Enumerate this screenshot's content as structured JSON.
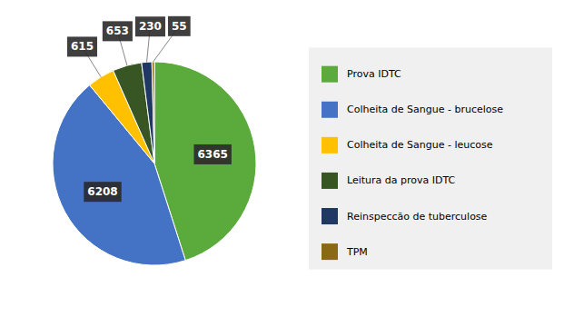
{
  "chart_data": {
    "type": "pie",
    "categories": [
      "Prova IDTC",
      "Colheita de Sangue - brucelose",
      "Colheita de Sangue - leucose",
      "Leitura da prova IDTC",
      "Reinspeccão de tuberculose",
      "TPM"
    ],
    "values": [
      6365,
      6208,
      615,
      653,
      230,
      55
    ],
    "colors": [
      "#5aaa3c",
      "#4472c4",
      "#ffc000",
      "#375623",
      "#1f3864",
      "#8b6914"
    ],
    "data_labels": true,
    "legend": "right"
  }
}
